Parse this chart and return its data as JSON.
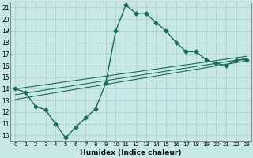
{
  "xlabel": "Humidex (Indice chaleur)",
  "xlim": [
    -0.5,
    23.5
  ],
  "ylim": [
    9.5,
    21.5
  ],
  "yticks": [
    10,
    11,
    12,
    13,
    14,
    15,
    16,
    17,
    18,
    19,
    20,
    21
  ],
  "xticks": [
    0,
    1,
    2,
    3,
    4,
    5,
    6,
    7,
    8,
    9,
    10,
    11,
    12,
    13,
    14,
    15,
    16,
    17,
    18,
    19,
    20,
    21,
    22,
    23
  ],
  "bg_color": "#c8e8e8",
  "grid_color": "#a8cccc",
  "line_color": "#1a6b5a",
  "series_main": {
    "x": [
      0,
      1,
      2,
      3,
      4,
      5,
      6,
      7,
      8,
      9,
      10,
      11,
      12,
      13,
      14,
      15,
      16,
      17,
      18,
      19,
      20,
      21,
      22,
      23
    ],
    "y": [
      14.0,
      13.7,
      12.5,
      12.2,
      11.0,
      9.8,
      10.7,
      11.5,
      12.3,
      14.5,
      19.0,
      21.2,
      20.5,
      20.5,
      19.7,
      19.0,
      18.0,
      17.2,
      17.2,
      16.5,
      16.2,
      16.0,
      16.5,
      16.5
    ]
  },
  "series_linear": [
    {
      "x": [
        0,
        23
      ],
      "y": [
        13.1,
        16.4
      ]
    },
    {
      "x": [
        0,
        23
      ],
      "y": [
        13.5,
        16.6
      ]
    },
    {
      "x": [
        0,
        23
      ],
      "y": [
        14.0,
        16.8
      ]
    }
  ]
}
